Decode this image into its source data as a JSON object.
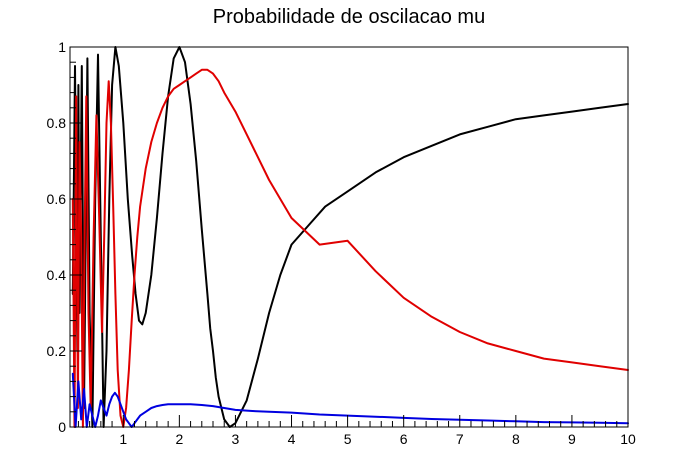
{
  "chart_data": {
    "type": "line",
    "title": "Probabilidade de oscilacao mu",
    "xlabel": "",
    "ylabel": "",
    "xlim": [
      0.05,
      10
    ],
    "ylim": [
      0,
      1
    ],
    "x_ticks": [
      1,
      2,
      3,
      4,
      5,
      6,
      7,
      8,
      9,
      10
    ],
    "x_tick_labels": [
      "1",
      "2",
      "3",
      "4",
      "5",
      "6",
      "7",
      "8",
      "9",
      "10"
    ],
    "y_ticks": [
      0,
      0.2,
      0.4,
      0.6,
      0.8,
      1
    ],
    "y_tick_labels": [
      "0",
      "0.2",
      "0.4",
      "0.6",
      "0.8",
      "1"
    ],
    "grid": false,
    "legend": "none",
    "series": [
      {
        "color": "#000000",
        "x": [
          0.1,
          0.14,
          0.18,
          0.2,
          0.22,
          0.26,
          0.3,
          0.33,
          0.36,
          0.4,
          0.45,
          0.5,
          0.55,
          0.6,
          0.65,
          0.7,
          0.75,
          0.8,
          0.86,
          0.92,
          1.0,
          1.08,
          1.16,
          1.22,
          1.28,
          1.34,
          1.4,
          1.5,
          1.6,
          1.7,
          1.8,
          1.9,
          2.0,
          2.1,
          2.2,
          2.3,
          2.4,
          2.5,
          2.55,
          2.6,
          2.65,
          2.7,
          2.8,
          2.9,
          3.0,
          3.2,
          3.4,
          3.6,
          3.8,
          4.0,
          4.3,
          4.6,
          5.0,
          5.5,
          6.0,
          6.5,
          7.0,
          7.5,
          8.0,
          8.5,
          9.0,
          9.5,
          10.0
        ],
        "y": [
          0.35,
          0.95,
          0.2,
          0.9,
          0.3,
          0.95,
          0.05,
          0.5,
          0.97,
          0.3,
          0.0,
          0.6,
          0.98,
          0.5,
          0.0,
          0.2,
          0.6,
          0.9,
          1.0,
          0.95,
          0.8,
          0.6,
          0.45,
          0.35,
          0.28,
          0.27,
          0.3,
          0.4,
          0.55,
          0.72,
          0.87,
          0.97,
          1.0,
          0.96,
          0.85,
          0.7,
          0.52,
          0.35,
          0.26,
          0.2,
          0.13,
          0.08,
          0.02,
          0.0,
          0.01,
          0.07,
          0.18,
          0.3,
          0.4,
          0.48,
          0.53,
          0.58,
          0.62,
          0.67,
          0.71,
          0.74,
          0.77,
          0.79,
          0.81,
          0.82,
          0.83,
          0.84,
          0.85
        ]
      },
      {
        "color": "#e00000",
        "x": [
          0.1,
          0.13,
          0.16,
          0.19,
          0.22,
          0.25,
          0.28,
          0.31,
          0.34,
          0.38,
          0.42,
          0.47,
          0.52,
          0.57,
          0.62,
          0.66,
          0.7,
          0.74,
          0.78,
          0.82,
          0.86,
          0.9,
          0.95,
          1.0,
          1.05,
          1.1,
          1.15,
          1.2,
          1.25,
          1.3,
          1.4,
          1.5,
          1.6,
          1.7,
          1.8,
          1.9,
          2.0,
          2.1,
          2.2,
          2.3,
          2.4,
          2.5,
          2.6,
          2.7,
          2.8,
          3.0,
          3.2,
          3.4,
          3.6,
          3.8,
          4.0,
          4.5,
          5.0,
          5.5,
          6.0,
          6.5,
          7.0,
          7.5,
          8.0,
          8.5,
          9.0,
          9.5,
          10.0
        ],
        "y": [
          0.6,
          0.0,
          0.87,
          0.05,
          0.75,
          0.5,
          0.0,
          0.5,
          0.87,
          0.3,
          0.05,
          0.5,
          0.82,
          0.55,
          0.25,
          0.5,
          0.8,
          0.91,
          0.8,
          0.58,
          0.35,
          0.15,
          0.03,
          0.0,
          0.05,
          0.15,
          0.28,
          0.4,
          0.5,
          0.58,
          0.68,
          0.75,
          0.8,
          0.84,
          0.87,
          0.89,
          0.9,
          0.91,
          0.92,
          0.93,
          0.94,
          0.94,
          0.93,
          0.91,
          0.88,
          0.83,
          0.77,
          0.71,
          0.65,
          0.6,
          0.55,
          0.48,
          0.49,
          0.41,
          0.34,
          0.29,
          0.25,
          0.22,
          0.2,
          0.18,
          0.17,
          0.16,
          0.15
        ]
      },
      {
        "color": "#0000e0",
        "x": [
          0.1,
          0.15,
          0.2,
          0.25,
          0.3,
          0.35,
          0.4,
          0.45,
          0.5,
          0.55,
          0.6,
          0.65,
          0.7,
          0.75,
          0.8,
          0.85,
          0.9,
          0.95,
          1.0,
          1.05,
          1.1,
          1.15,
          1.2,
          1.25,
          1.3,
          1.4,
          1.5,
          1.6,
          1.7,
          1.8,
          1.9,
          2.0,
          2.2,
          2.4,
          2.6,
          2.8,
          3.0,
          3.3,
          3.6,
          4.0,
          4.5,
          5.0,
          5.5,
          6.0,
          6.5,
          7.0,
          7.5,
          8.0,
          8.5,
          9.0,
          9.5,
          10.0
        ],
        "y": [
          0.14,
          0.0,
          0.12,
          0.02,
          0.1,
          0.0,
          0.06,
          0.03,
          0.0,
          0.03,
          0.07,
          0.05,
          0.03,
          0.06,
          0.08,
          0.09,
          0.08,
          0.06,
          0.04,
          0.02,
          0.01,
          0.0,
          0.01,
          0.02,
          0.03,
          0.04,
          0.05,
          0.055,
          0.058,
          0.06,
          0.06,
          0.06,
          0.06,
          0.058,
          0.055,
          0.05,
          0.045,
          0.042,
          0.04,
          0.038,
          0.033,
          0.03,
          0.027,
          0.024,
          0.021,
          0.019,
          0.017,
          0.015,
          0.013,
          0.012,
          0.011,
          0.01
        ]
      }
    ]
  }
}
